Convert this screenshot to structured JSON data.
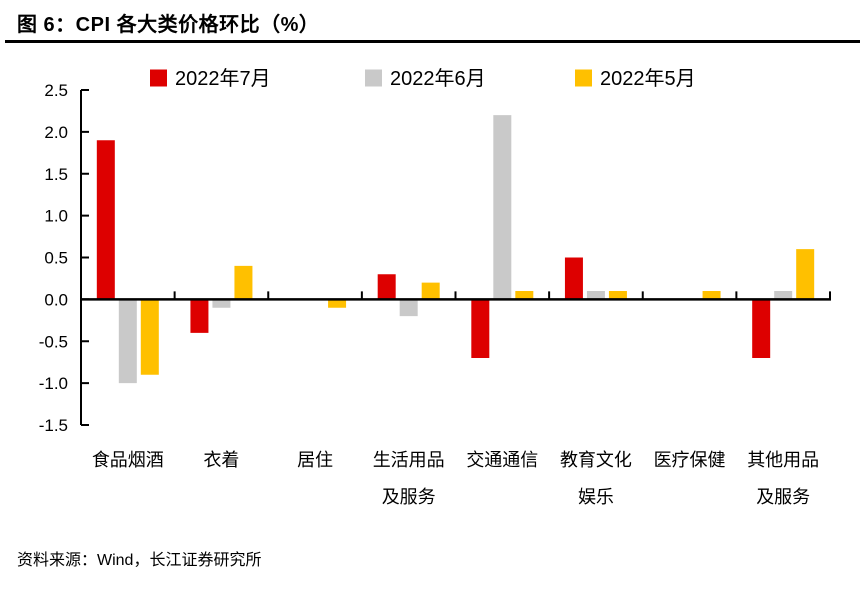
{
  "figure": {
    "title": "图 6：CPI 各大类价格环比（%）",
    "source": "资料来源：Wind，长江证券研究所"
  },
  "chart_data": {
    "type": "bar",
    "title": "CPI 各大类价格环比（%）",
    "categories": [
      "食品烟酒",
      "衣着",
      "居住",
      "生活用品\n及服务",
      "交通通信",
      "教育文化\n娱乐",
      "医疗保健",
      "其他用品\n及服务"
    ],
    "series": [
      {
        "name": "2022年7月",
        "color": "#DD0000",
        "values": [
          1.9,
          -0.4,
          0,
          0.3,
          -0.7,
          0.5,
          0,
          -0.7
        ]
      },
      {
        "name": "2022年6月",
        "color": "#C9C9C9",
        "values": [
          -1.0,
          -0.1,
          0,
          -0.2,
          2.2,
          0.1,
          0,
          0.1
        ]
      },
      {
        "name": "2022年5月",
        "color": "#FFC000",
        "values": [
          -0.9,
          0.4,
          -0.1,
          0.2,
          0.1,
          0.1,
          0.1,
          0.6
        ]
      }
    ],
    "ylim": [
      -1.5,
      2.5
    ],
    "ytick_step": 0.5,
    "ytick_format_decimals": 1,
    "grid": false,
    "legend_position": "top",
    "axis_color": "#000000"
  }
}
